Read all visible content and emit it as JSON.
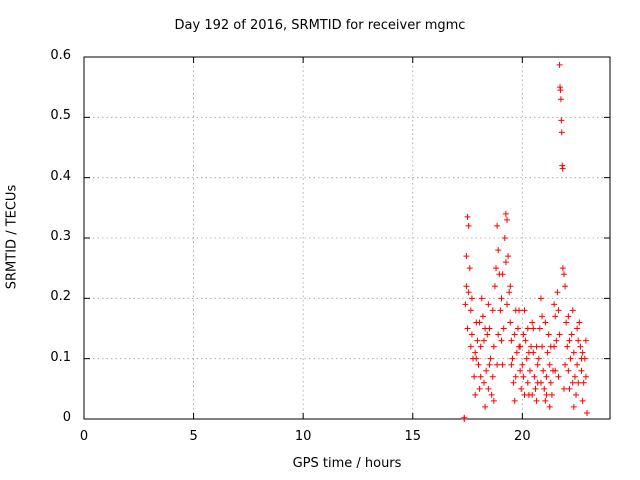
{
  "chart_data": {
    "type": "scatter",
    "title": "Day 192 of 2016, SRMTID for receiver mgmc",
    "xlabel": "GPS time / hours",
    "ylabel": "SRMTID / TECUs",
    "xlim": [
      0,
      24
    ],
    "ylim": [
      0,
      0.6
    ],
    "xticks": [
      "0",
      "5",
      "10",
      "15",
      "20"
    ],
    "yticks": [
      "0",
      "0.1",
      "0.2",
      "0.3",
      "0.4",
      "0.5",
      "0.6"
    ],
    "grid": true,
    "marker": "+",
    "series": [
      {
        "name": "SRMTID",
        "color": "#ff0000",
        "points": [
          [
            17.35,
            0.0
          ],
          [
            17.35,
            0.002
          ],
          [
            17.4,
            0.19
          ],
          [
            17.45,
            0.22
          ],
          [
            17.5,
            0.335
          ],
          [
            17.55,
            0.32
          ],
          [
            17.6,
            0.25
          ],
          [
            17.65,
            0.18
          ],
          [
            17.7,
            0.14
          ],
          [
            17.75,
            0.1
          ],
          [
            17.8,
            0.07
          ],
          [
            17.85,
            0.11
          ],
          [
            17.9,
            0.16
          ],
          [
            17.95,
            0.13
          ],
          [
            18.0,
            0.09
          ],
          [
            18.05,
            0.05
          ],
          [
            18.1,
            0.12
          ],
          [
            18.15,
            0.2
          ],
          [
            18.2,
            0.17
          ],
          [
            18.25,
            0.06
          ],
          [
            18.3,
            0.02
          ],
          [
            18.35,
            0.08
          ],
          [
            18.4,
            0.14
          ],
          [
            18.45,
            0.19
          ],
          [
            18.5,
            0.15
          ],
          [
            18.55,
            0.1
          ],
          [
            18.6,
            0.04
          ],
          [
            18.65,
            0.07
          ],
          [
            18.7,
            0.12
          ],
          [
            18.75,
            0.22
          ],
          [
            18.8,
            0.25
          ],
          [
            18.85,
            0.32
          ],
          [
            18.9,
            0.28
          ],
          [
            18.95,
            0.24
          ],
          [
            19.0,
            0.18
          ],
          [
            19.05,
            0.13
          ],
          [
            19.1,
            0.09
          ],
          [
            19.15,
            0.15
          ],
          [
            19.2,
            0.3
          ],
          [
            19.25,
            0.34
          ],
          [
            19.3,
            0.33
          ],
          [
            19.35,
            0.27
          ],
          [
            19.4,
            0.21
          ],
          [
            19.45,
            0.16
          ],
          [
            19.5,
            0.13
          ],
          [
            19.55,
            0.1
          ],
          [
            19.6,
            0.06
          ],
          [
            19.65,
            0.03
          ],
          [
            19.7,
            0.07
          ],
          [
            19.75,
            0.11
          ],
          [
            19.8,
            0.15
          ],
          [
            19.85,
            0.12
          ],
          [
            19.9,
            0.08
          ],
          [
            19.95,
            0.05
          ],
          [
            20.0,
            0.09
          ],
          [
            20.05,
            0.14
          ],
          [
            20.1,
            0.18
          ],
          [
            20.15,
            0.13
          ],
          [
            20.2,
            0.1
          ],
          [
            20.25,
            0.06
          ],
          [
            20.3,
            0.04
          ],
          [
            20.35,
            0.08
          ],
          [
            20.4,
            0.12
          ],
          [
            20.45,
            0.16
          ],
          [
            20.5,
            0.11
          ],
          [
            20.55,
            0.07
          ],
          [
            20.6,
            0.05
          ],
          [
            20.65,
            0.03
          ],
          [
            20.7,
            0.06
          ],
          [
            20.75,
            0.1
          ],
          [
            20.8,
            0.15
          ],
          [
            20.85,
            0.2
          ],
          [
            20.9,
            0.12
          ],
          [
            20.95,
            0.08
          ],
          [
            21.0,
            0.05
          ],
          [
            21.05,
            0.03
          ],
          [
            21.1,
            0.07
          ],
          [
            21.15,
            0.11
          ],
          [
            21.2,
            0.14
          ],
          [
            21.25,
            0.09
          ],
          [
            21.3,
            0.06
          ],
          [
            21.35,
            0.04
          ],
          [
            21.4,
            0.08
          ],
          [
            21.45,
            0.12
          ],
          [
            21.5,
            0.17
          ],
          [
            21.55,
            0.13
          ],
          [
            21.6,
            0.21
          ],
          [
            21.65,
            0.18
          ],
          [
            21.7,
            0.587
          ],
          [
            21.72,
            0.55
          ],
          [
            21.74,
            0.545
          ],
          [
            21.76,
            0.53
          ],
          [
            21.78,
            0.495
          ],
          [
            21.8,
            0.475
          ],
          [
            21.82,
            0.42
          ],
          [
            21.84,
            0.415
          ],
          [
            21.85,
            0.25
          ],
          [
            21.9,
            0.24
          ],
          [
            21.95,
            0.22
          ],
          [
            22.0,
            0.16
          ],
          [
            22.05,
            0.12
          ],
          [
            22.1,
            0.08
          ],
          [
            22.15,
            0.05
          ],
          [
            22.2,
            0.1
          ],
          [
            22.25,
            0.14
          ],
          [
            22.3,
            0.18
          ],
          [
            22.35,
            0.11
          ],
          [
            22.4,
            0.07
          ],
          [
            22.45,
            0.04
          ],
          [
            22.5,
            0.09
          ],
          [
            22.55,
            0.13
          ],
          [
            22.6,
            0.16
          ],
          [
            22.65,
            0.12
          ],
          [
            22.7,
            0.08
          ],
          [
            22.75,
            0.03
          ],
          [
            22.8,
            0.06
          ],
          [
            22.85,
            0.1
          ],
          [
            22.9,
            0.07
          ],
          [
            22.95,
            0.01
          ],
          [
            17.45,
            0.27
          ],
          [
            17.55,
            0.21
          ],
          [
            17.65,
            0.12
          ],
          [
            17.85,
            0.04
          ],
          [
            18.05,
            0.16
          ],
          [
            18.25,
            0.13
          ],
          [
            18.45,
            0.05
          ],
          [
            18.65,
            0.18
          ],
          [
            18.85,
            0.09
          ],
          [
            19.05,
            0.2
          ],
          [
            19.25,
            0.26
          ],
          [
            19.45,
            0.22
          ],
          [
            19.65,
            0.14
          ],
          [
            19.85,
            0.18
          ],
          [
            20.05,
            0.07
          ],
          [
            20.25,
            0.15
          ],
          [
            20.45,
            0.04
          ],
          [
            20.65,
            0.12
          ],
          [
            20.85,
            0.06
          ],
          [
            21.05,
            0.16
          ],
          [
            21.25,
            0.02
          ],
          [
            21.45,
            0.19
          ],
          [
            21.65,
            0.07
          ],
          [
            21.95,
            0.09
          ],
          [
            22.15,
            0.13
          ],
          [
            22.35,
            0.02
          ],
          [
            22.55,
            0.06
          ],
          [
            22.75,
            0.11
          ],
          [
            17.5,
            0.15
          ],
          [
            17.7,
            0.2
          ],
          [
            17.9,
            0.1
          ],
          [
            18.1,
            0.07
          ],
          [
            18.3,
            0.15
          ],
          [
            18.5,
            0.09
          ],
          [
            18.7,
            0.03
          ],
          [
            18.9,
            0.14
          ],
          [
            19.1,
            0.24
          ],
          [
            19.3,
            0.19
          ],
          [
            19.5,
            0.09
          ],
          [
            19.7,
            0.18
          ],
          [
            19.9,
            0.12
          ],
          [
            20.1,
            0.04
          ],
          [
            20.3,
            0.11
          ],
          [
            20.5,
            0.15
          ],
          [
            20.7,
            0.09
          ],
          [
            20.9,
            0.17
          ],
          [
            21.1,
            0.04
          ],
          [
            21.3,
            0.12
          ],
          [
            21.5,
            0.08
          ],
          [
            21.7,
            0.14
          ],
          [
            21.9,
            0.05
          ],
          [
            22.1,
            0.17
          ],
          [
            22.3,
            0.06
          ],
          [
            22.5,
            0.15
          ],
          [
            22.7,
            0.1
          ],
          [
            22.9,
            0.13
          ]
        ]
      }
    ]
  }
}
